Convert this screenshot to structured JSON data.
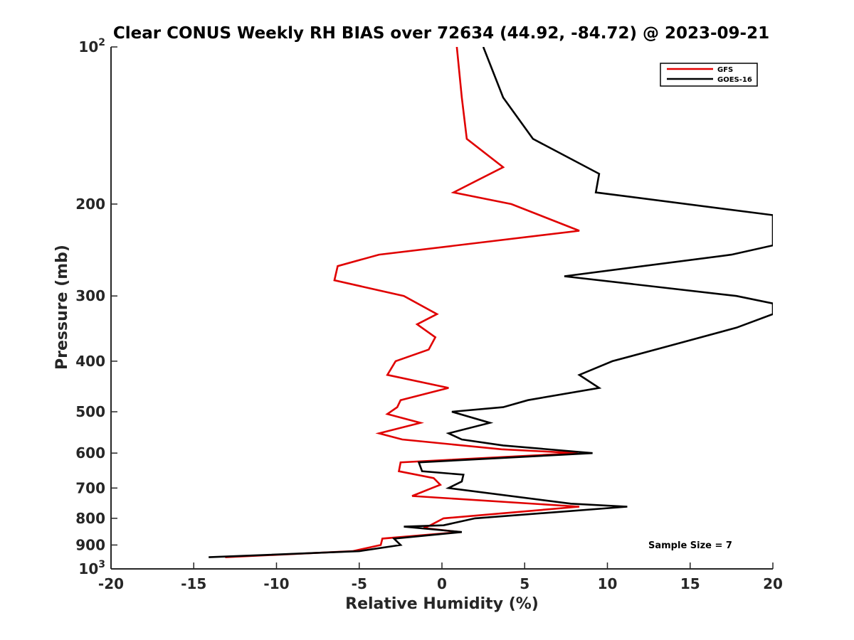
{
  "chart_data": {
    "type": "line",
    "title": "Clear CONUS Weekly RH BIAS over 72634 (44.92, -84.72) @ 2023-09-21",
    "xlabel": "Relative Humidity (%)",
    "ylabel": "Pressure (mb)",
    "xlim": [
      -20,
      20
    ],
    "ylim": [
      100,
      1000
    ],
    "yscale": "log",
    "y_reversed": true,
    "grid": false,
    "x_ticks": [
      -20,
      -15,
      -10,
      -5,
      0,
      5,
      10,
      15,
      20
    ],
    "y_ticks": [
      {
        "value": 100,
        "label": "10",
        "exp": "2"
      },
      {
        "value": 200,
        "label": "200"
      },
      {
        "value": 300,
        "label": "300"
      },
      {
        "value": 400,
        "label": "400"
      },
      {
        "value": 500,
        "label": "500"
      },
      {
        "value": 600,
        "label": "600"
      },
      {
        "value": 700,
        "label": "700"
      },
      {
        "value": 800,
        "label": "800"
      },
      {
        "value": 900,
        "label": "900"
      },
      {
        "value": 1000,
        "label": "10",
        "exp": "3"
      }
    ],
    "legend_position": "top-right",
    "annotation": "Sample Size = 7",
    "series": [
      {
        "name": "GFS",
        "color": "#e00000",
        "points": [
          [
            0.9,
            100
          ],
          [
            1.2,
            125
          ],
          [
            1.5,
            150
          ],
          [
            3.7,
            170
          ],
          [
            0.7,
            190
          ],
          [
            4.2,
            200
          ],
          [
            8.3,
            225
          ],
          [
            -3.8,
            250
          ],
          [
            -6.3,
            263
          ],
          [
            -6.5,
            280
          ],
          [
            -2.3,
            300
          ],
          [
            -0.3,
            325
          ],
          [
            -1.5,
            340
          ],
          [
            -0.4,
            360
          ],
          [
            -0.8,
            380
          ],
          [
            -2.8,
            400
          ],
          [
            -3.3,
            425
          ],
          [
            0.4,
            450
          ],
          [
            -2.5,
            475
          ],
          [
            -2.7,
            490
          ],
          [
            -3.3,
            505
          ],
          [
            -1.3,
            525
          ],
          [
            -3.8,
            550
          ],
          [
            -2.4,
            565
          ],
          [
            3.6,
            590
          ],
          [
            8.2,
            600
          ],
          [
            -2.5,
            625
          ],
          [
            -2.6,
            650
          ],
          [
            -0.5,
            670
          ],
          [
            -0.1,
            690
          ],
          [
            -0.6,
            700
          ],
          [
            -1.8,
            725
          ],
          [
            8.3,
            760
          ],
          [
            0.1,
            800
          ],
          [
            -0.7,
            825
          ],
          [
            -1.1,
            835
          ],
          [
            1.1,
            850
          ],
          [
            -3.6,
            875
          ],
          [
            -3.7,
            900
          ],
          [
            -5.4,
            925
          ],
          [
            -13.1,
            950
          ]
        ]
      },
      {
        "name": "GOES-16",
        "color": "#000000",
        "points": [
          [
            2.5,
            100
          ],
          [
            3.7,
            125
          ],
          [
            5.5,
            150
          ],
          [
            9.5,
            175
          ],
          [
            9.3,
            190
          ],
          [
            20,
            210
          ],
          [
            20,
            240
          ],
          [
            17.5,
            250
          ],
          [
            7.4,
            275
          ],
          [
            17.8,
            300
          ],
          [
            20,
            310
          ],
          [
            20,
            325
          ],
          [
            17.8,
            345
          ],
          [
            13.6,
            375
          ],
          [
            10.3,
            400
          ],
          [
            8.3,
            425
          ],
          [
            9.5,
            450
          ],
          [
            5.2,
            475
          ],
          [
            3.7,
            490
          ],
          [
            0.6,
            500
          ],
          [
            2.9,
            525
          ],
          [
            0.4,
            550
          ],
          [
            1.2,
            565
          ],
          [
            3.7,
            580
          ],
          [
            9.1,
            600
          ],
          [
            -1.4,
            625
          ],
          [
            -1.2,
            650
          ],
          [
            1.3,
            660
          ],
          [
            1.2,
            680
          ],
          [
            0.4,
            700
          ],
          [
            7.8,
            750
          ],
          [
            11.2,
            760
          ],
          [
            2.0,
            800
          ],
          [
            0.1,
            825
          ],
          [
            -2.3,
            830
          ],
          [
            1.2,
            850
          ],
          [
            -2.9,
            875
          ],
          [
            -2.5,
            900
          ],
          [
            -5.0,
            925
          ],
          [
            -14.1,
            950
          ]
        ]
      }
    ]
  }
}
